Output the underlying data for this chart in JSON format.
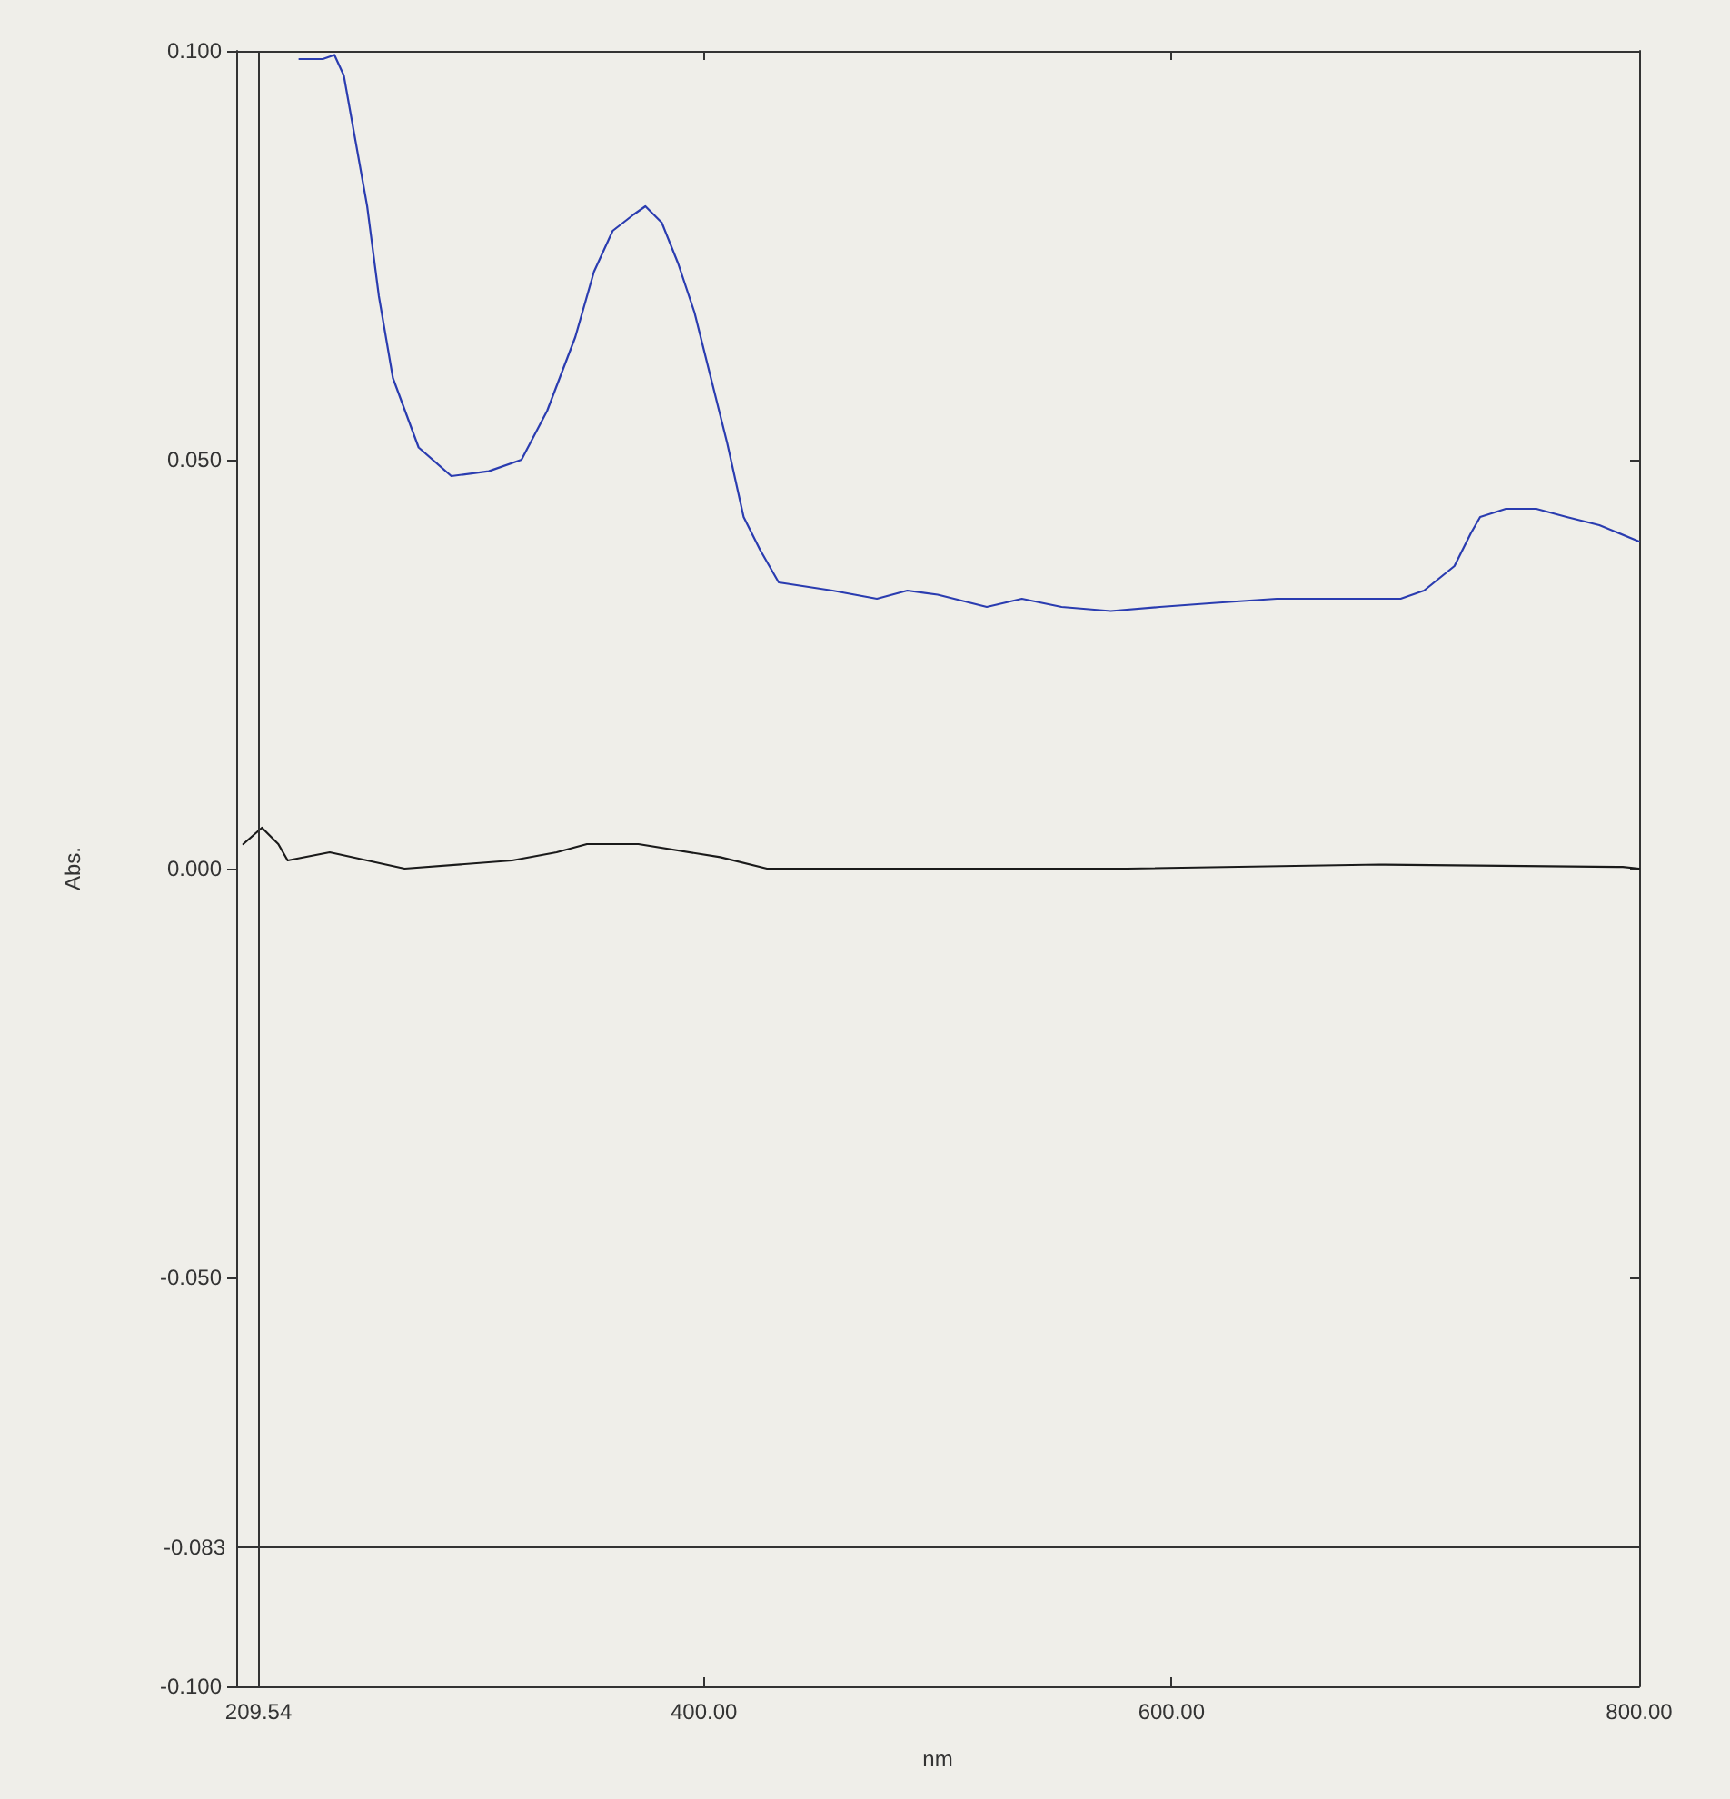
{
  "chart_data": {
    "type": "line",
    "xlabel": "nm",
    "ylabel": "Abs.",
    "xlim": [
      200,
      800
    ],
    "xticks": [
      {
        "value": 400,
        "label": "400.00"
      },
      {
        "value": 600,
        "label": "600.00"
      },
      {
        "value": 800,
        "label": "800.00"
      }
    ],
    "ylim": [
      -0.1,
      0.1
    ],
    "yticks": [
      {
        "value": -0.1,
        "label": "-0.100"
      },
      {
        "value": -0.05,
        "label": "-0.050"
      },
      {
        "value": 0,
        "label": "0.000"
      },
      {
        "value": 0.05,
        "label": "0.050"
      },
      {
        "value": 0.1,
        "label": "0.100"
      }
    ],
    "ref_lines": [
      {
        "axis": "x",
        "value": 209.54,
        "label": "209.54",
        "color": "#333333"
      },
      {
        "axis": "y",
        "value": -0.083,
        "label": "-0.083",
        "color": "#333333"
      }
    ],
    "grid": false,
    "series": [
      {
        "color": "#2a3cb0",
        "x": [
          227,
          237,
          242,
          246,
          251,
          256,
          261,
          267,
          278,
          292,
          308,
          322,
          333,
          345,
          353,
          361,
          370,
          375,
          382,
          389,
          396,
          403,
          410,
          417,
          424,
          432,
          455,
          474,
          487,
          500,
          521,
          536,
          553,
          574,
          595,
          619,
          645,
          671,
          698,
          708,
          721,
          728,
          732,
          743,
          756,
          769,
          783,
          800
        ],
        "values": [
          0.099,
          0.099,
          0.0995,
          0.097,
          0.089,
          0.081,
          0.07,
          0.06,
          0.0515,
          0.048,
          0.0486,
          0.05,
          0.056,
          0.065,
          0.073,
          0.078,
          0.08,
          0.081,
          0.079,
          0.074,
          0.068,
          0.06,
          0.052,
          0.043,
          0.039,
          0.035,
          0.034,
          0.033,
          0.034,
          0.0335,
          0.032,
          0.033,
          0.032,
          0.0315,
          0.032,
          0.0325,
          0.033,
          0.033,
          0.033,
          0.034,
          0.037,
          0.041,
          0.043,
          0.044,
          0.044,
          0.043,
          0.042,
          0.04
        ]
      },
      {
        "color": "#1a1a1a",
        "x": [
          203,
          211,
          218,
          222,
          240,
          272,
          318,
          337,
          350,
          372,
          407,
          427,
          478,
          581,
          689,
          793,
          800
        ],
        "values": [
          0.003,
          0.005,
          0.003,
          0.001,
          0.002,
          0.0,
          0.001,
          0.002,
          0.003,
          0.003,
          0.0014,
          0.0,
          0.0,
          0.0,
          0.0005,
          0.0002,
          0.0
        ]
      }
    ]
  }
}
